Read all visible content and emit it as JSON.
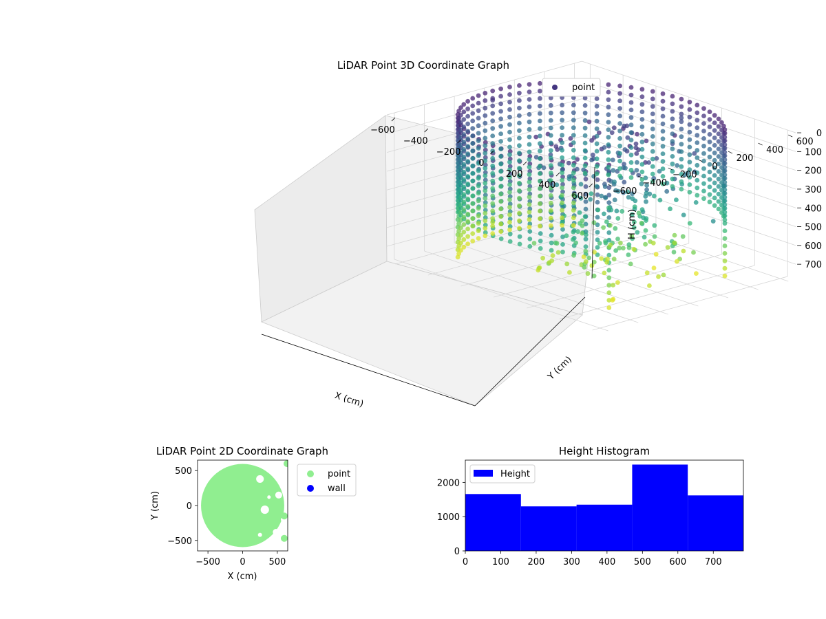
{
  "chart_data": [
    {
      "type": "scatter",
      "projection": "3d",
      "title": "LiDAR Point 3D Coordinate Graph",
      "xlabel": "X (cm)",
      "ylabel": "Y (cm)",
      "zlabel": "H (cm)",
      "xticks": [
        "−600",
        "−400",
        "−200",
        "0",
        "200",
        "400",
        "600"
      ],
      "yticks": [
        "−600",
        "−400",
        "−200",
        "0",
        "200",
        "400",
        "600"
      ],
      "zticks": [
        "0",
        "100",
        "200",
        "300",
        "400",
        "500",
        "600",
        "700"
      ],
      "xlim": [
        -650,
        650
      ],
      "ylim": [
        -650,
        650
      ],
      "zlim": [
        0,
        780
      ],
      "z_inverted": true,
      "colormap": "viridis (color by height)",
      "legend": {
        "label": "point",
        "placement": "top-right"
      },
      "series": [
        {
          "name": "point",
          "structure": "cylindrical wall of points, radius ≈ 600 cm, heights 0–780 cm, open on the +X side with sparse interior points",
          "sample_points": [
            {
              "x": -600,
              "y": 0,
              "z": 50
            },
            {
              "x": -600,
              "y": 0,
              "z": 700
            },
            {
              "x": 0,
              "y": 600,
              "z": 100
            },
            {
              "x": 0,
              "y": -600,
              "z": 400
            },
            {
              "x": 420,
              "y": 420,
              "z": 300
            },
            {
              "x": 400,
              "y": -420,
              "z": 600
            },
            {
              "x": 150,
              "y": 50,
              "z": 200
            },
            {
              "x": 100,
              "y": -200,
              "z": 500
            },
            {
              "x": 650,
              "y": 100,
              "z": 350
            }
          ]
        }
      ]
    },
    {
      "type": "scatter",
      "title": "LiDAR Point 2D Coordinate Graph",
      "xlabel": "X (cm)",
      "ylabel": "Y (cm)",
      "xticks": [
        "−500",
        "0",
        "500"
      ],
      "yticks": [
        "−500",
        "0",
        "500"
      ],
      "xlim": [
        -650,
        650
      ],
      "ylim": [
        -650,
        650
      ],
      "legend": {
        "placement": "outside-right",
        "entries": [
          {
            "label": "point",
            "color": "#90ee90"
          },
          {
            "label": "wall",
            "color": "#0000ff"
          }
        ]
      },
      "series": [
        {
          "name": "point",
          "color": "#90ee90",
          "shape": "filled disc of radius ≈ 600 cm centred at origin, with gaps on the +X side"
        },
        {
          "name": "wall",
          "color": "#0000ff",
          "values": []
        }
      ]
    },
    {
      "type": "bar",
      "title": "Height Histogram",
      "legend": {
        "label": "Height",
        "placement": "top-left",
        "color": "#0000ff"
      },
      "xticks": [
        "0",
        "100",
        "200",
        "300",
        "400",
        "500",
        "600",
        "700"
      ],
      "yticks": [
        "0",
        "1000",
        "2000"
      ],
      "xlim": [
        0,
        785
      ],
      "ylim": [
        0,
        2650
      ],
      "bin_edges": [
        0,
        157,
        314,
        471,
        628,
        785
      ],
      "values": [
        1660,
        1300,
        1350,
        2520,
        1620
      ],
      "color": "#0000ff"
    }
  ]
}
